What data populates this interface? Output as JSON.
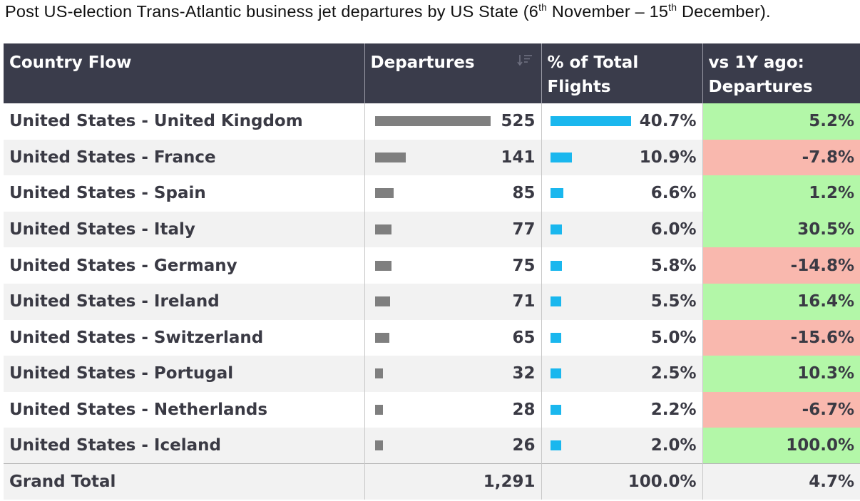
{
  "caption": {
    "part1": "Post US-election Trans-Atlantic business jet departures by US State (6",
    "sup1": "th",
    "part2": " November – 15",
    "sup2": "th",
    "part3": " December)."
  },
  "chart_data": {
    "type": "table",
    "columns": [
      "Country Flow",
      "Departures",
      "% of Total Flights",
      "vs 1Y ago: Departures"
    ],
    "rows": [
      {
        "flow": "United States - United Kingdom",
        "departures": 525,
        "departures_label": "525",
        "pct": 40.7,
        "pct_label": "40.7%",
        "yoy": 5.2,
        "yoy_label": "5.2%"
      },
      {
        "flow": "United States - France",
        "departures": 141,
        "departures_label": "141",
        "pct": 10.9,
        "pct_label": "10.9%",
        "yoy": -7.8,
        "yoy_label": "-7.8%"
      },
      {
        "flow": "United States - Spain",
        "departures": 85,
        "departures_label": "85",
        "pct": 6.6,
        "pct_label": "6.6%",
        "yoy": 1.2,
        "yoy_label": "1.2%"
      },
      {
        "flow": "United States - Italy",
        "departures": 77,
        "departures_label": "77",
        "pct": 6.0,
        "pct_label": "6.0%",
        "yoy": 30.5,
        "yoy_label": "30.5%"
      },
      {
        "flow": "United States - Germany",
        "departures": 75,
        "departures_label": "75",
        "pct": 5.8,
        "pct_label": "5.8%",
        "yoy": -14.8,
        "yoy_label": "-14.8%"
      },
      {
        "flow": "United States - Ireland",
        "departures": 71,
        "departures_label": "71",
        "pct": 5.5,
        "pct_label": "5.5%",
        "yoy": 16.4,
        "yoy_label": "16.4%"
      },
      {
        "flow": "United States - Switzerland",
        "departures": 65,
        "departures_label": "65",
        "pct": 5.0,
        "pct_label": "5.0%",
        "yoy": -15.6,
        "yoy_label": "-15.6%"
      },
      {
        "flow": "United States - Portugal",
        "departures": 32,
        "departures_label": "32",
        "pct": 2.5,
        "pct_label": "2.5%",
        "yoy": 10.3,
        "yoy_label": "10.3%"
      },
      {
        "flow": "United States - Netherlands",
        "departures": 28,
        "departures_label": "28",
        "pct": 2.2,
        "pct_label": "2.2%",
        "yoy": -6.7,
        "yoy_label": "-6.7%"
      },
      {
        "flow": "United States - Iceland",
        "departures": 26,
        "departures_label": "26",
        "pct": 2.0,
        "pct_label": "2.0%",
        "yoy": 100.0,
        "yoy_label": "100.0%"
      }
    ],
    "total": {
      "label": "Grand Total",
      "departures_label": "1,291",
      "pct_label": "100.0%",
      "yoy_label": "4.7%"
    }
  },
  "header": {
    "col1": "Country Flow",
    "col2": "Departures",
    "col3_line1": "% of Total",
    "col3_line2": "Flights",
    "col4_line1": "vs 1Y ago:",
    "col4_line2": "Departures",
    "sort_icon": "sort-descending-icon"
  },
  "colors": {
    "header_bg": "#3a3c4b",
    "departures_bar": "#7f7f7f",
    "pct_bar": "#1ab7ee",
    "positive": "#b3f7a8",
    "negative": "#f9b8ae"
  }
}
